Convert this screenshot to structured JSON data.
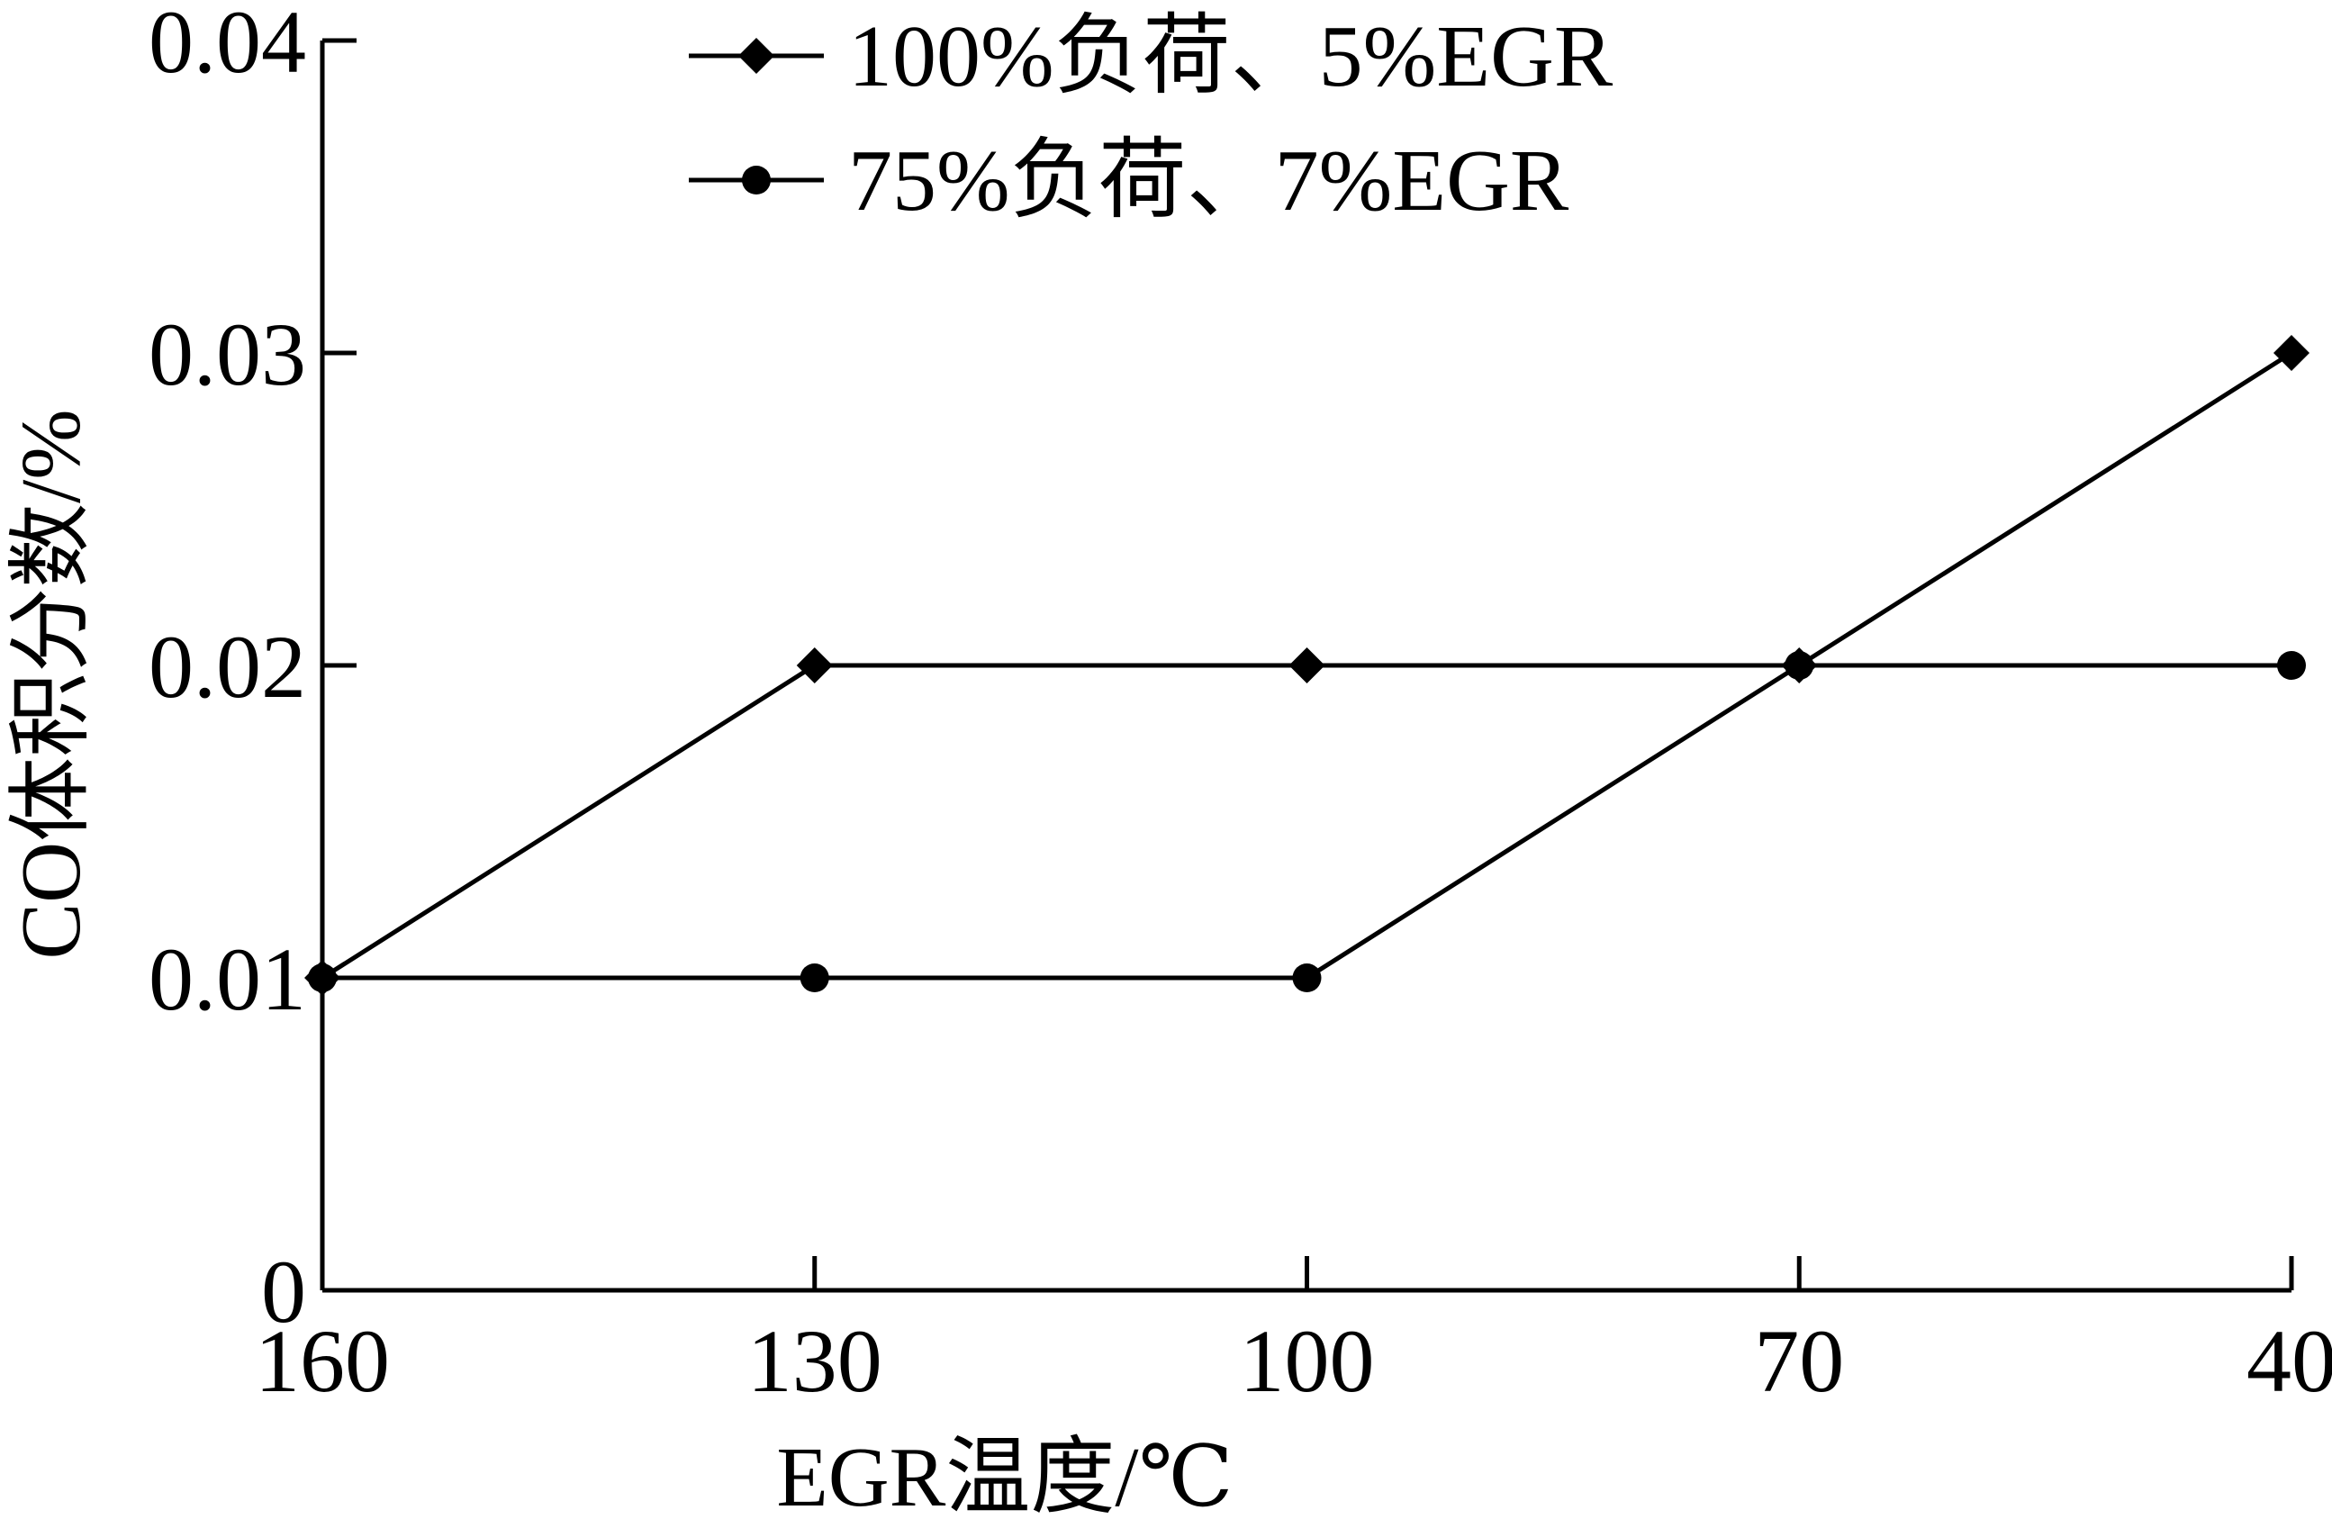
{
  "chart_data": {
    "type": "line",
    "xlabel": "EGR温度/℃",
    "ylabel": "CO体积分数/%",
    "x": [
      160,
      130,
      100,
      70,
      40
    ],
    "x_tick_labels": [
      "160",
      "130",
      "100",
      "70",
      "40"
    ],
    "x_reversed": true,
    "ylim": [
      0,
      0.04
    ],
    "y_tick_labels": [
      "0",
      "0.01",
      "0.02",
      "0.03",
      "0.04"
    ],
    "y_ticks": [
      0,
      0.01,
      0.02,
      0.03,
      0.04
    ],
    "grid": false,
    "legend_position": "top",
    "series": [
      {
        "name": "100%负荷、5%EGR",
        "marker": "diamond",
        "values": [
          0.01,
          0.02,
          0.02,
          0.02,
          0.03
        ]
      },
      {
        "name": "75%负荷、7%EGR",
        "marker": "circle",
        "values": [
          0.01,
          0.01,
          0.01,
          0.02,
          0.02
        ]
      }
    ],
    "colors": {
      "line": "#000000",
      "axis": "#000000",
      "background": "#ffffff"
    }
  }
}
